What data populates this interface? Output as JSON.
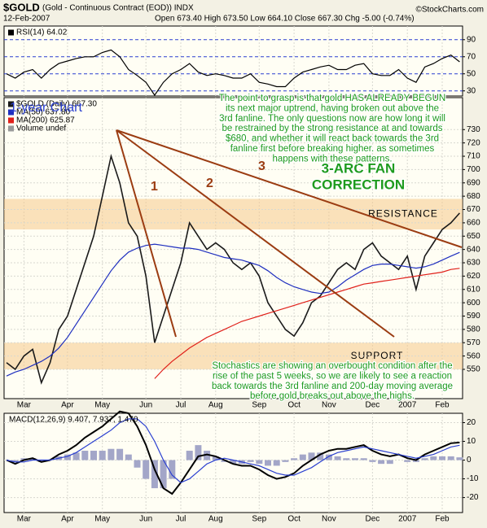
{
  "header": {
    "symbol": "$GOLD",
    "description": "(Gold - Continuous Contract (EOD)) INDX",
    "date": "12-Feb-2007",
    "quote": "Open 673.40   High 673.50   Low 664.10   Close 667.30   Chg -5.00 (-0.74%)",
    "source": "©StockCharts.com"
  },
  "annotations": {
    "chart_label": "1-year Chart",
    "fan_numbers": [
      "1",
      "2",
      "3"
    ],
    "fan_title": [
      "3-ARC FAN",
      "CORRECTION"
    ],
    "note_top": [
      "The point to grasp is that gold HAS ALREADY BEGUN",
      "its next major uptrend, having broken out above the",
      "3rd fanline. The only questions now are how long it will",
      "be restrained by the strong resistance at and towards",
      "$680, and whether it will react back towards the 3rd",
      "fanline first before breaking higher. as sometimes",
      "happens with these patterns."
    ],
    "note_bottom": [
      "Stochastics are showing an overbought condition after the",
      "rise of the past 5 weeks, so we are likely to see a reaction",
      "back towards the 3rd fanline and 200-day moving average",
      "before gold breaks out above the highs."
    ]
  },
  "chart_data": [
    {
      "type": "line",
      "ylim": [
        24,
        106
      ],
      "yticks": [
        30,
        50,
        70,
        90
      ],
      "grid": true,
      "series": [
        {
          "name": "RSI(14) 64.02",
          "color": "#000000",
          "values": [
            50,
            45,
            52,
            55,
            45,
            55,
            62,
            65,
            68,
            70,
            70,
            75,
            78,
            70,
            55,
            48,
            40,
            25,
            40,
            50,
            55,
            62,
            52,
            48,
            50,
            48,
            45,
            45,
            50,
            40,
            38,
            35,
            35,
            45,
            52,
            55,
            58,
            60,
            55,
            55,
            60,
            62,
            50,
            48,
            48,
            55,
            45,
            40,
            58,
            62,
            68,
            72,
            64.02
          ]
        }
      ]
    },
    {
      "type": "line",
      "ylim": [
        528,
        754
      ],
      "yticks": [
        550,
        560,
        570,
        580,
        590,
        600,
        610,
        620,
        630,
        640,
        650,
        660,
        670,
        680,
        690,
        700,
        710,
        720,
        730
      ],
      "grid": true,
      "categories": [
        null,
        null,
        "Mar",
        null,
        null,
        null,
        null,
        "Apr",
        null,
        null,
        null,
        "May",
        null,
        null,
        null,
        null,
        "Jun",
        null,
        null,
        null,
        "Jul",
        null,
        null,
        null,
        "Aug",
        null,
        null,
        null,
        null,
        "Sep",
        null,
        null,
        null,
        "Oct",
        null,
        null,
        null,
        "Nov",
        null,
        null,
        null,
        null,
        "Dec",
        null,
        null,
        null,
        "2007",
        null,
        null,
        null,
        "Feb",
        null,
        null
      ],
      "bands": [
        {
          "label": "RESISTANCE",
          "range": [
            655,
            678
          ]
        },
        {
          "label": "SUPPORT",
          "range": [
            550,
            570
          ]
        }
      ],
      "legend_extra": "Volume undef",
      "series": [
        {
          "name": "$GOLD (Daily) 667.30",
          "color": "#1a1a1a",
          "values": [
            555,
            550,
            560,
            565,
            540,
            555,
            580,
            590,
            610,
            630,
            650,
            680,
            710,
            690,
            660,
            650,
            620,
            570,
            590,
            610,
            630,
            660,
            650,
            640,
            645,
            640,
            630,
            625,
            630,
            620,
            600,
            590,
            580,
            575,
            585,
            600,
            605,
            615,
            625,
            630,
            625,
            640,
            645,
            635,
            630,
            625,
            635,
            610,
            635,
            645,
            655,
            660,
            667.3
          ]
        },
        {
          "name": "MA(50) 637.80",
          "color": "#1f2fbf",
          "values": [
            545,
            548,
            550,
            553,
            556,
            560,
            566,
            574,
            584,
            594,
            604,
            614,
            624,
            632,
            638,
            641,
            643,
            644,
            643,
            642,
            641,
            641,
            640,
            638,
            636,
            634,
            633,
            632,
            630,
            628,
            624,
            619,
            615,
            612,
            610,
            608,
            607,
            608,
            612,
            617,
            621,
            625,
            628,
            629,
            629,
            628,
            627,
            626,
            627,
            629,
            632,
            635,
            637.8
          ]
        },
        {
          "name": "MA(200) 625.87",
          "color": "#e0201a",
          "values": [
            null,
            null,
            null,
            null,
            null,
            null,
            null,
            null,
            null,
            null,
            null,
            null,
            null,
            null,
            null,
            null,
            null,
            543,
            550,
            556,
            561,
            566,
            570,
            574,
            577,
            580,
            583,
            586,
            588,
            590,
            592,
            594,
            596,
            598,
            600,
            602,
            604,
            606,
            608,
            610,
            612,
            614,
            615,
            616,
            617,
            618,
            619,
            620,
            621,
            622,
            623,
            625,
            625.87
          ]
        }
      ]
    },
    {
      "type": "line",
      "ylim": [
        -28,
        25
      ],
      "yticks": [
        -20,
        -10,
        0,
        10,
        20
      ],
      "grid": true,
      "categories": [
        null,
        null,
        "Mar",
        null,
        null,
        null,
        null,
        "Apr",
        null,
        null,
        null,
        "May",
        null,
        null,
        null,
        null,
        "Jun",
        null,
        null,
        null,
        "Jul",
        null,
        null,
        null,
        "Aug",
        null,
        null,
        null,
        null,
        "Sep",
        null,
        null,
        null,
        "Oct",
        null,
        null,
        null,
        "Nov",
        null,
        null,
        null,
        null,
        "Dec",
        null,
        null,
        null,
        "2007",
        null,
        null,
        null,
        "Feb",
        null,
        null
      ],
      "legend": "MACD(12,26,9) 9.407, 7.937, 1.470",
      "series": [
        {
          "type": "bar",
          "color": "#a3a6c8",
          "values": [
            0,
            -1,
            1,
            1,
            -1,
            0,
            2,
            3,
            4,
            5,
            5,
            5,
            6,
            6,
            3,
            -4,
            -10,
            -15,
            -15,
            -10,
            0,
            5,
            8,
            5,
            2,
            -1,
            -2,
            -2,
            -1,
            -2,
            -3,
            -3,
            -1,
            1,
            3,
            4,
            4,
            3,
            2,
            1,
            1,
            1,
            -1,
            -2,
            -2,
            0,
            -1,
            -1,
            1,
            2,
            2,
            2,
            1.47
          ]
        },
        {
          "color": "#000000",
          "width": 2,
          "values": [
            0,
            -2,
            0,
            1,
            -1,
            0,
            3,
            5,
            8,
            12,
            15,
            18,
            22,
            26,
            25,
            18,
            8,
            -5,
            -15,
            -18,
            -12,
            -5,
            2,
            3,
            2,
            0,
            -2,
            -3,
            -3,
            -5,
            -8,
            -10,
            -9,
            -7,
            -3,
            0,
            3,
            5,
            6,
            6,
            7,
            8,
            5,
            3,
            2,
            3,
            1,
            0,
            3,
            5,
            7,
            9,
            9.407
          ]
        },
        {
          "color": "#2a3fd0",
          "values": [
            0,
            -1,
            -1,
            0,
            0,
            0,
            1,
            2,
            4,
            7,
            10,
            13,
            16,
            20,
            22,
            22,
            18,
            10,
            0,
            -8,
            -12,
            -10,
            -6,
            -2,
            0,
            1,
            0,
            -1,
            -2,
            -3,
            -5,
            -7,
            -8,
            -8,
            -6,
            -4,
            -1,
            2,
            4,
            5,
            6,
            7,
            6,
            5,
            4,
            3,
            2,
            1,
            2,
            3,
            5,
            7,
            7.937
          ]
        }
      ]
    }
  ]
}
